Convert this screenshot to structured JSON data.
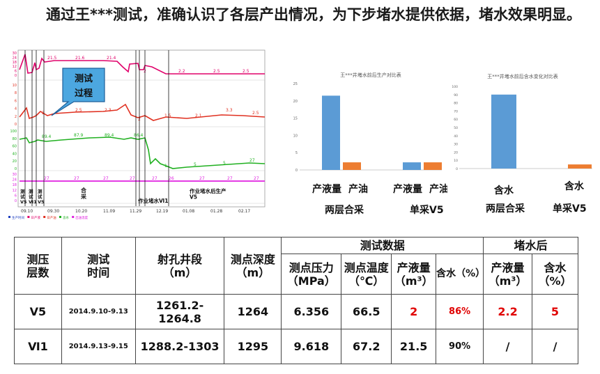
{
  "headline": "通过王***测试，准确认识了各层产出情况，为下步堵水提供依据，堵水效果明显。",
  "log_chart": {
    "callout": [
      "测试",
      "过程"
    ],
    "x_ticks": [
      "09.10",
      "09.30",
      "10.20",
      "11.09",
      "11.29",
      "12.19",
      "01.08",
      "01.28",
      "02.17"
    ],
    "legend": [
      "生产时间",
      "日产液",
      "日产油",
      "含水",
      "出油温度"
    ],
    "red_series_labels": [
      "21.5",
      "21.6",
      "21.4",
      "2",
      "2.2",
      "2.5",
      "2.5"
    ],
    "mid_series_labels": [
      "2",
      "2.5",
      "2.3",
      "2",
      "1.5",
      "2.1",
      "3.3",
      "2.5"
    ],
    "green_series_labels": [
      "89.4",
      "87.9",
      "89.4",
      "86.4",
      "1",
      "5",
      "5",
      "27"
    ],
    "magenta_series_labels": [
      "27",
      "27",
      "27",
      "27",
      "27",
      "26",
      "27",
      "27",
      "27"
    ],
    "phase_labels": {
      "test1": [
        "测",
        "试",
        "V5"
      ],
      "test2": [
        "测",
        "试",
        "Ⅵ1"
      ],
      "test3": [
        "测",
        "试",
        "V5"
      ],
      "combined": [
        "合",
        "采"
      ],
      "workover": "作业堵水Ⅵ1",
      "after": [
        "作业堵水后生产",
        "V5"
      ]
    },
    "y_ticks_top": [
      "30",
      "24",
      "18",
      "12",
      "6",
      "0"
    ],
    "y_ticks_mid": [
      "10",
      "8",
      "6",
      "4",
      "2",
      "0"
    ],
    "y_ticks_green": [
      "100",
      "80",
      "60",
      "40",
      "20",
      "0"
    ],
    "y_ticks_bottom": [
      "30",
      "24",
      "18",
      "12",
      "6",
      "0"
    ]
  },
  "chart_data": [
    {
      "type": "bar",
      "title": "王***井堵水前后生产对比表",
      "groups": [
        "两层合采",
        "单采V5"
      ],
      "categories": [
        "产液量",
        "产油"
      ],
      "series_values": [
        [
          21.5,
          2.2
        ],
        [
          2.2,
          2.2
        ]
      ],
      "colors": [
        "#5b9bd5",
        "#ed7d31"
      ],
      "ylim": [
        0,
        25
      ],
      "yticks": [
        "0",
        "5",
        "10",
        "15",
        "20",
        "25"
      ]
    },
    {
      "type": "bar",
      "title": "王***井堵水前后含水变化对比表",
      "groups": [
        "两层合采",
        "单采V5"
      ],
      "categories": [
        "含水",
        "含水"
      ],
      "values": [
        90,
        5
      ],
      "colors": [
        "#5b9bd5",
        "#ed7d31"
      ],
      "ylim": [
        0,
        100
      ],
      "yticks": [
        "0",
        "10",
        "20",
        "30",
        "40",
        "50",
        "60",
        "70",
        "80",
        "90",
        "100"
      ]
    }
  ],
  "table": {
    "headers": {
      "layer": [
        "测压",
        "层数"
      ],
      "time": [
        "测试",
        "时间"
      ],
      "interval": [
        "射孔井段",
        "（m）"
      ],
      "depth": [
        "测点深度",
        "（m）"
      ],
      "test_data": "测试数据",
      "pressure": [
        "测点压力",
        "（MPa）"
      ],
      "temp": [
        "测点温度",
        "（℃）"
      ],
      "liquid": [
        "产液量",
        "（m³）"
      ],
      "water": "含水（%）",
      "after": "堵水后",
      "after_liquid": [
        "产液量",
        "（m³）"
      ],
      "after_water": [
        "含水",
        "（%）"
      ]
    },
    "rows": [
      {
        "layer": "V5",
        "time": "2014.9.10-9.13",
        "interval": "1261.2-1264.8",
        "depth": "1264",
        "pressure": "6.356",
        "temp": "66.5",
        "liquid": "2",
        "water": "86%",
        "after_liquid": "2.2",
        "after_water": "5"
      },
      {
        "layer": "Ⅵ1",
        "time": "2014.9.13-9.15",
        "interval": "1288.2-1303",
        "depth": "1295",
        "pressure": "9.618",
        "temp": "67.2",
        "liquid": "21.5",
        "water": "90%",
        "after_liquid": "/",
        "after_water": "/"
      }
    ]
  }
}
